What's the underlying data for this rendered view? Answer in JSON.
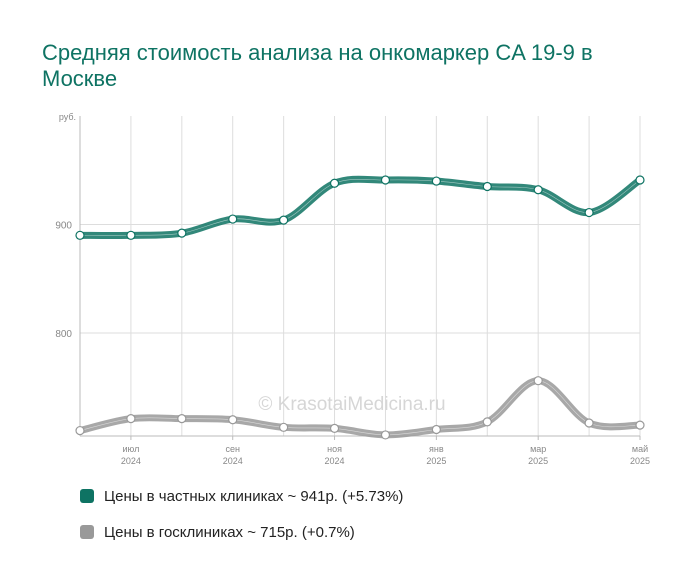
{
  "title": "Средняя стоимость анализа на онкомаркер CA 19-9 в Москве",
  "watermark": "© KrasotaiMedicina.ru",
  "colors": {
    "private": "#0e7363",
    "public": "#999999",
    "grid": "#dddddd",
    "axis_text": "#888888"
  },
  "legend": [
    {
      "label": "Цены в частных клиниках ~ 941р. (+5.73%)",
      "color": "#0e7363"
    },
    {
      "label": "Цены в госклиниках ~ 715р. (+0.7%)",
      "color": "#999999"
    }
  ],
  "chart_data": {
    "type": "line",
    "title": "Средняя стоимость анализа на онкомаркер CA 19-9 в Москве",
    "ylabel": "руб.",
    "ylim": [
      705,
      1000
    ],
    "yticks": [
      800,
      900
    ],
    "x": [
      "2024-05",
      "2024-07",
      "2024-08",
      "2024-09",
      "2024-10",
      "2024-11",
      "2024-12",
      "2025-01",
      "2025-02",
      "2025-03",
      "2025-04",
      "2025-05"
    ],
    "x_tick_labels": [
      {
        "index": 1,
        "month": "июл",
        "year": "2024"
      },
      {
        "index": 3,
        "month": "сен",
        "year": "2024"
      },
      {
        "index": 5,
        "month": "ноя",
        "year": "2024"
      },
      {
        "index": 7,
        "month": "янв",
        "year": "2025"
      },
      {
        "index": 9,
        "month": "мар",
        "year": "2025"
      },
      {
        "index": 11,
        "month": "май",
        "year": "2025"
      }
    ],
    "grid": true,
    "legend_position": "bottom",
    "series": [
      {
        "name": "Цены в частных клиниках",
        "color": "#0e7363",
        "values": [
          890,
          890,
          892,
          905,
          904,
          938,
          941,
          940,
          935,
          932,
          911,
          941
        ]
      },
      {
        "name": "Цены в госклиниках",
        "color": "#999999",
        "values": [
          710,
          721,
          721,
          720,
          713,
          712,
          706,
          711,
          718,
          756,
          717,
          715
        ]
      }
    ]
  }
}
